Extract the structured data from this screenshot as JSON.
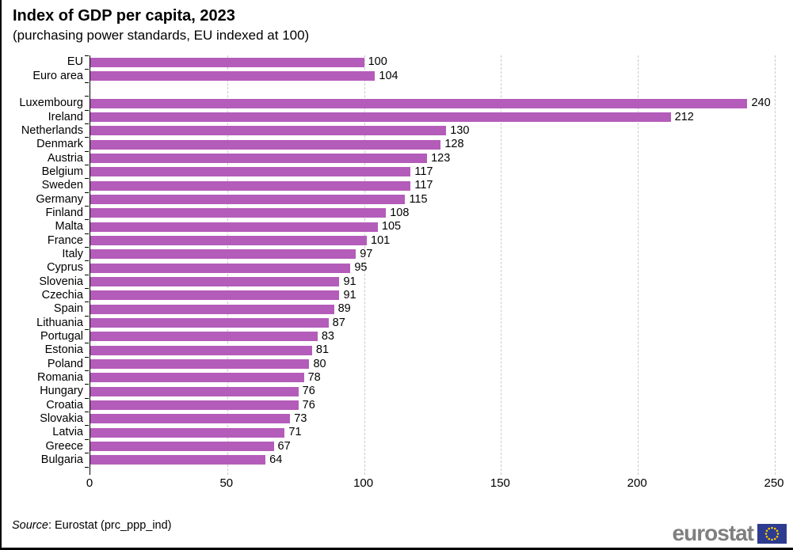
{
  "colors": {
    "bar": "#b45cba",
    "grid": "#c9c9c9",
    "axis": "#000000",
    "logo_text": "#7f7f7f",
    "flag_blue": "#2d3c90",
    "flag_stars": "#ffcc00"
  },
  "footer": {
    "source_prefix": "Source",
    "source_rest": ": Eurostat (prc_ppp_ind)",
    "logo_text": "eurostat"
  },
  "chart_data": {
    "type": "bar",
    "orientation": "horizontal",
    "title": "Index of GDP per capita, 2023",
    "subtitle": "(purchasing power standards, EU indexed at 100)",
    "xlabel": "",
    "ylabel": "",
    "xlim": [
      0,
      250
    ],
    "xticks": [
      0,
      50,
      100,
      150,
      200,
      250
    ],
    "grid": "vertical-dashed",
    "value_labels": "end-of-bar",
    "groups": [
      {
        "name": "aggregates",
        "categories": [
          "EU",
          "Euro area"
        ],
        "values": [
          100,
          104
        ]
      },
      {
        "name": "countries",
        "categories": [
          "Luxembourg",
          "Ireland",
          "Netherlands",
          "Denmark",
          "Austria",
          "Belgium",
          "Sweden",
          "Germany",
          "Finland",
          "Malta",
          "France",
          "Italy",
          "Cyprus",
          "Slovenia",
          "Czechia",
          "Spain",
          "Lithuania",
          "Portugal",
          "Estonia",
          "Poland",
          "Romania",
          "Hungary",
          "Croatia",
          "Slovakia",
          "Latvia",
          "Greece",
          "Bulgaria"
        ],
        "values": [
          240,
          212,
          130,
          128,
          123,
          117,
          117,
          115,
          108,
          105,
          101,
          97,
          95,
          91,
          91,
          89,
          87,
          83,
          81,
          80,
          78,
          76,
          76,
          73,
          71,
          67,
          64
        ]
      }
    ]
  }
}
